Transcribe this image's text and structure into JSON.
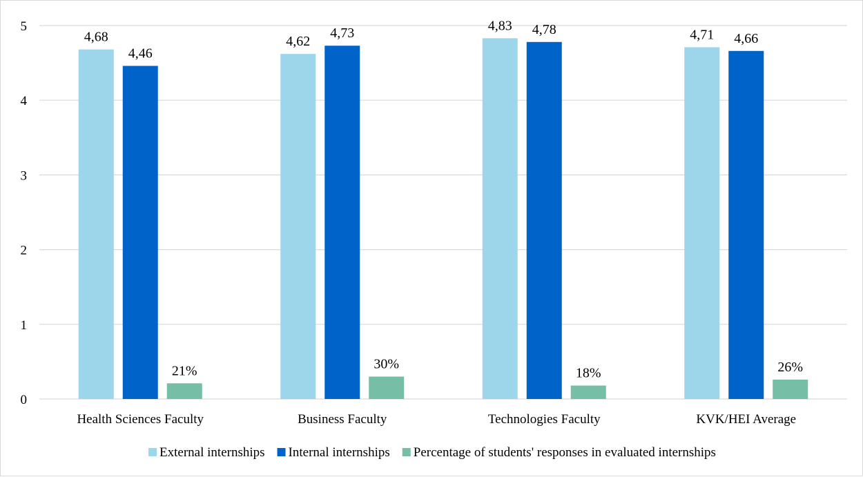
{
  "chart_data": {
    "type": "bar",
    "categories": [
      "Health Sciences Faculty",
      "Business Faculty",
      "Technologies Faculty",
      "KVK/HEI Average"
    ],
    "series": [
      {
        "name": "External internships",
        "color": "#9dd6ea",
        "values": [
          4.68,
          4.62,
          4.83,
          4.71
        ],
        "labels": [
          "4,68",
          "4,62",
          "4,83",
          "4,71"
        ]
      },
      {
        "name": "Internal internships",
        "color": "#0063c9",
        "values": [
          4.46,
          4.73,
          4.78,
          4.66
        ],
        "labels": [
          "4,46",
          "4,73",
          "4,78",
          "4,66"
        ]
      },
      {
        "name": "Percentage of students' responses in evaluated internships",
        "color": "#76bfa6",
        "values": [
          0.21,
          0.3,
          0.18,
          0.26
        ],
        "labels": [
          "21%",
          "30%",
          "18%",
          "26%"
        ]
      }
    ],
    "y_ticks": [
      "0",
      "1",
      "2",
      "3",
      "4",
      "5"
    ],
    "ylim": [
      0,
      5
    ],
    "grid": true,
    "legend_position": "bottom"
  }
}
